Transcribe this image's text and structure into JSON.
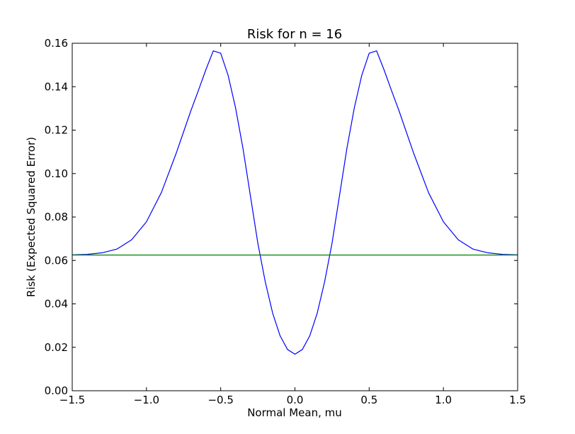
{
  "chart_data": {
    "type": "line",
    "title": "Risk for n = 16",
    "xlabel": "Normal Mean, mu",
    "ylabel": "Risk (Expected Squared Error)",
    "xlim": [
      -1.5,
      1.5
    ],
    "ylim": [
      0.0,
      0.16
    ],
    "x_ticks": [
      -1.5,
      -1.0,
      -0.5,
      0.0,
      0.5,
      1.0,
      1.5
    ],
    "x_tick_labels": [
      "−1.5",
      "−1.0",
      "−0.5",
      "0.0",
      "0.5",
      "1.0",
      "1.5"
    ],
    "y_ticks": [
      0.0,
      0.02,
      0.04,
      0.06,
      0.08,
      0.1,
      0.12,
      0.14,
      0.16
    ],
    "y_tick_labels": [
      "0.00",
      "0.02",
      "0.04",
      "0.06",
      "0.08",
      "0.10",
      "0.12",
      "0.14",
      "0.16"
    ],
    "grid": false,
    "series": [
      {
        "color": "#0000ff",
        "x": [
          -1.5,
          -1.4,
          -1.3,
          -1.2,
          -1.1,
          -1.0,
          -0.9,
          -0.8,
          -0.7,
          -0.65,
          -0.6,
          -0.55,
          -0.5,
          -0.45,
          -0.4,
          -0.35,
          -0.3,
          -0.25,
          -0.2,
          -0.15,
          -0.1,
          -0.05,
          0.0,
          0.05,
          0.1,
          0.15,
          0.2,
          0.25,
          0.3,
          0.35,
          0.4,
          0.45,
          0.5,
          0.55,
          0.6,
          0.65,
          0.7,
          0.8,
          0.9,
          1.0,
          1.1,
          1.2,
          1.3,
          1.4,
          1.5
        ],
        "y": [
          0.0626,
          0.0628,
          0.0635,
          0.0652,
          0.0695,
          0.0778,
          0.0912,
          0.1093,
          0.1291,
          0.1383,
          0.1478,
          0.1565,
          0.1554,
          0.1452,
          0.1303,
          0.1116,
          0.0898,
          0.068,
          0.0502,
          0.0357,
          0.0253,
          0.019,
          0.0168,
          0.019,
          0.0253,
          0.0357,
          0.0502,
          0.068,
          0.0898,
          0.1116,
          0.1303,
          0.1452,
          0.1554,
          0.1565,
          0.1478,
          0.1383,
          0.1291,
          0.1093,
          0.0912,
          0.0778,
          0.0695,
          0.0652,
          0.0635,
          0.0628,
          0.0626
        ]
      },
      {
        "color": "#008000",
        "x": [
          -1.5,
          1.5
        ],
        "y": [
          0.0625,
          0.0625
        ]
      }
    ]
  }
}
